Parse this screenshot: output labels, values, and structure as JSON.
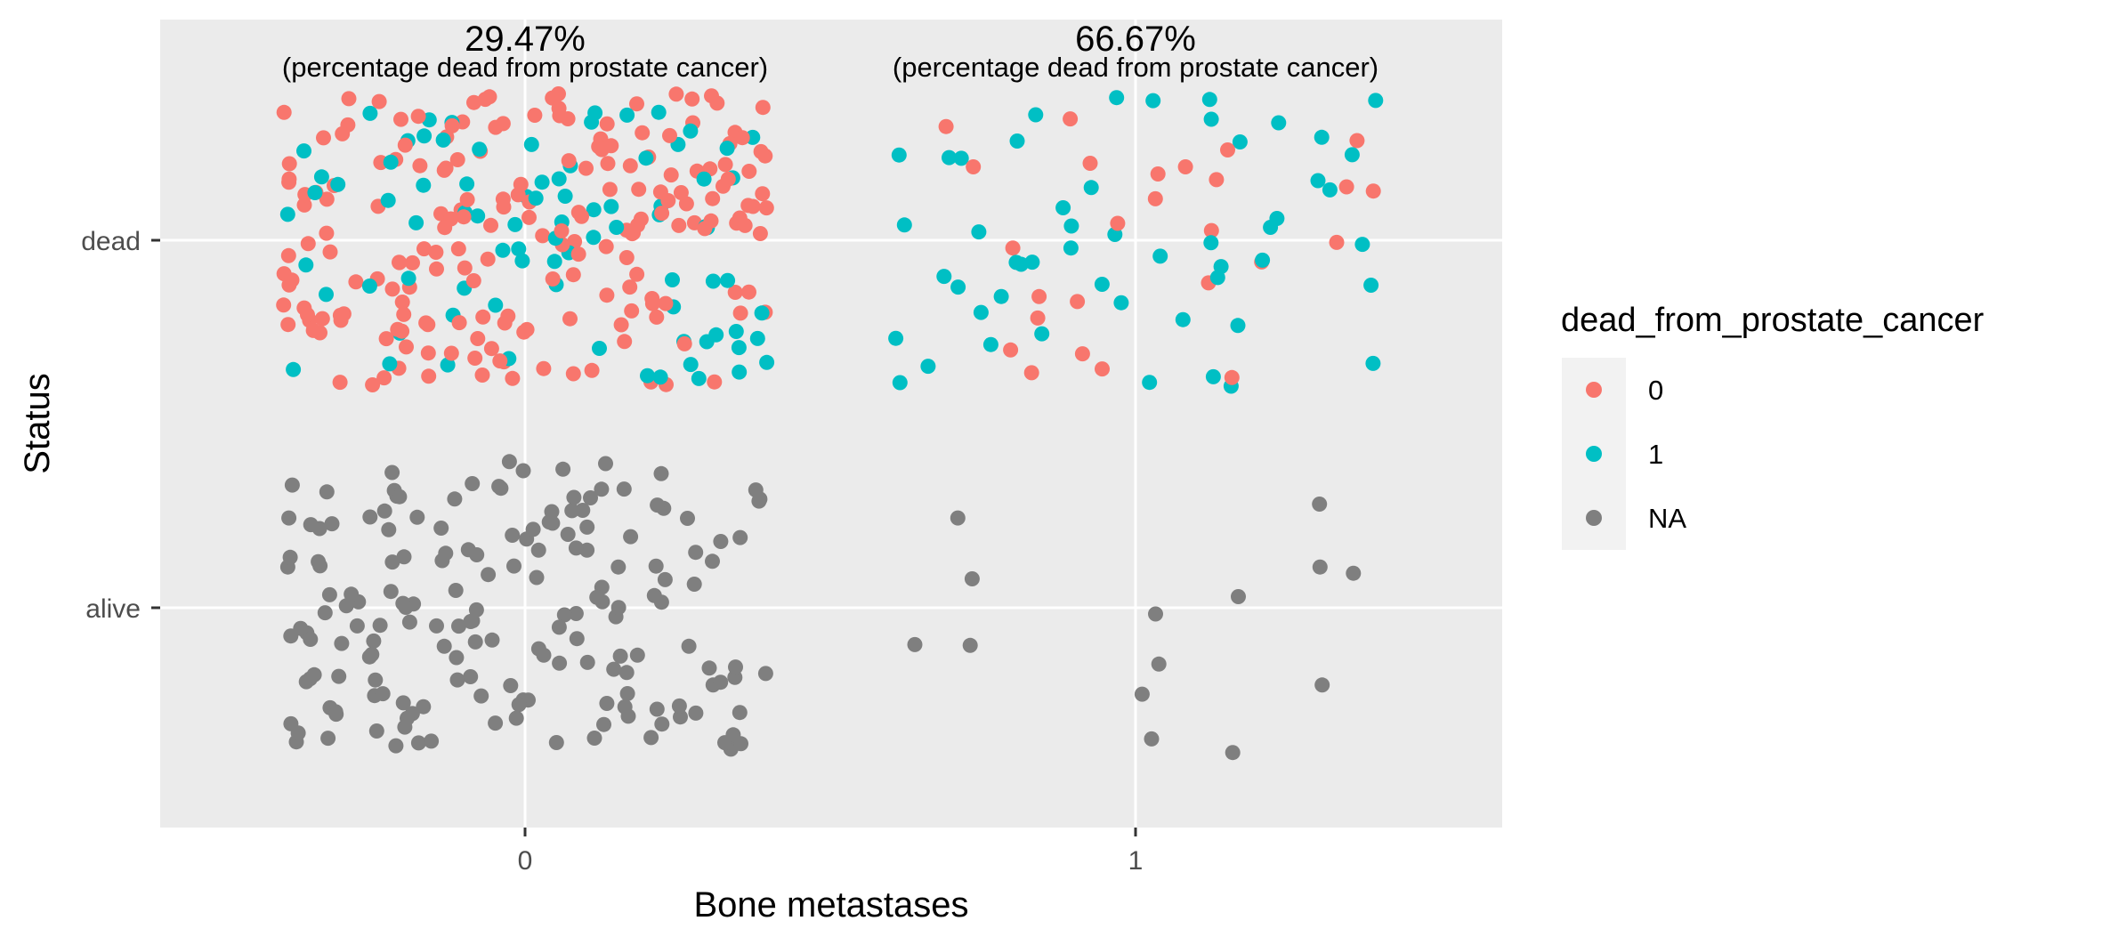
{
  "chart_data": {
    "type": "scatter",
    "jitter": true,
    "xlabel": "Bone metastases",
    "ylabel": "Status",
    "x_categories": [
      "0",
      "1"
    ],
    "y_categories": [
      "alive",
      "dead"
    ],
    "grid": true,
    "legend": {
      "title": "dead_from_prostate_cancer",
      "position": "right",
      "items": [
        {
          "label": "0",
          "color": "#F8766D"
        },
        {
          "label": "1",
          "color": "#00BFC4"
        },
        {
          "label": "NA",
          "color": "#7F7F7F"
        }
      ]
    },
    "annotations": [
      {
        "x": "0",
        "text": "29.47%",
        "subtext": "(percentage dead from prostate cancer)"
      },
      {
        "x": "1",
        "text": "66.67%",
        "subtext": "(percentage dead from prostate cancer)"
      }
    ],
    "colors": {
      "panel": "#EBEBEB",
      "grid": "#FFFFFF"
    }
  }
}
